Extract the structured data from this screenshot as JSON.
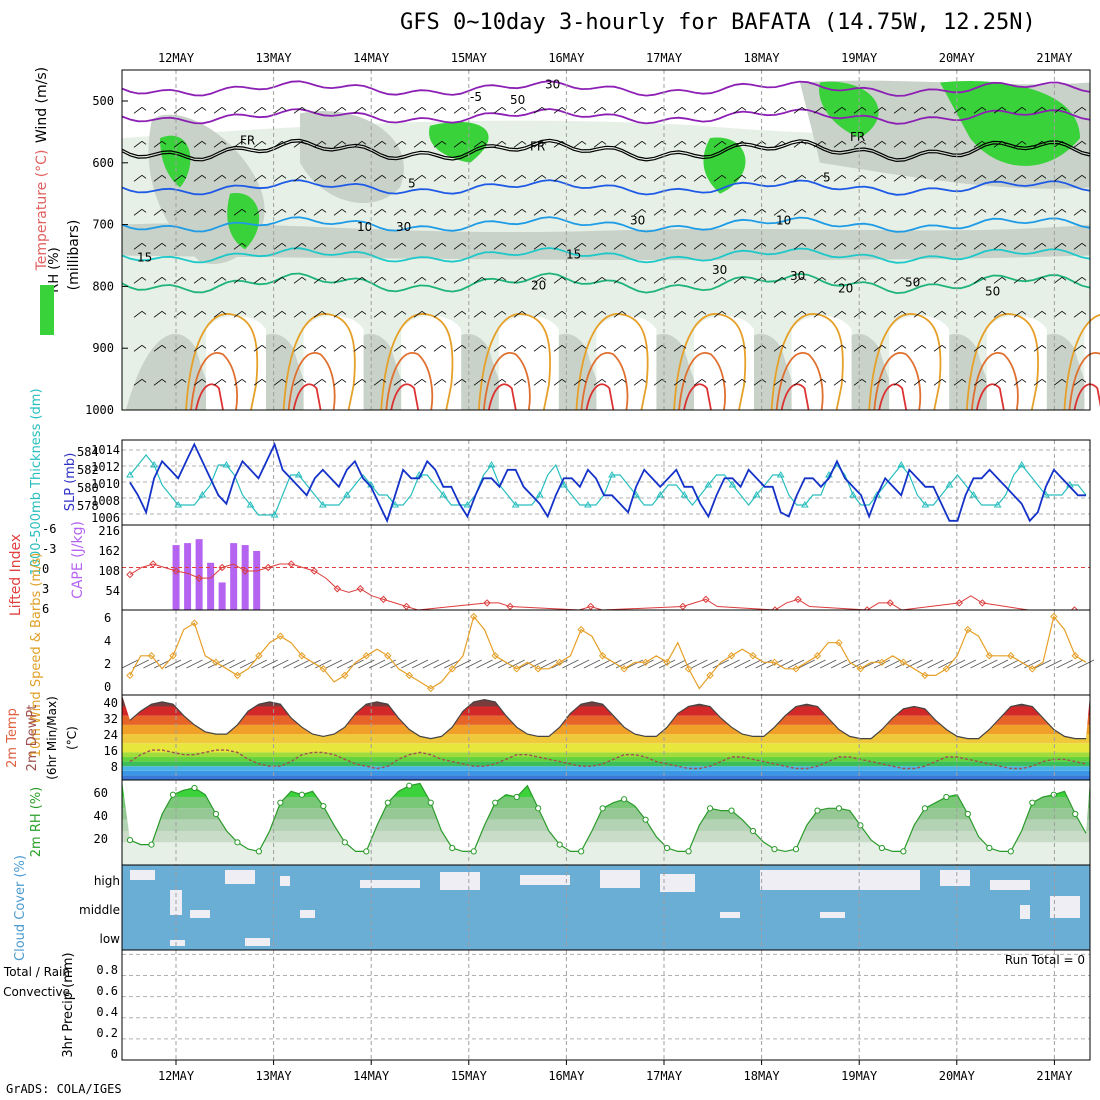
{
  "title": "GFS 0~10day 3-hourly for BAFATA (14.75W, 12.25N)",
  "credit": "GrADS: COLA/IGES",
  "colors": {
    "rh_green": "#3ad23a",
    "rh_grey": "#c8d2c8",
    "rh_light": "#e6f0e6",
    "temp_purple": "#8c1fb4",
    "temp_blue": "#1e5ae6",
    "temp_sky": "#1e9be6",
    "temp_cyan": "#1ec8c8",
    "temp_teal": "#1eb478",
    "temp_orange": "#e6a028",
    "temp_red": "#dc3232",
    "slp": "#1432c8",
    "thickness": "#28bebe",
    "cape": "#b464f0",
    "lifted": "#dc3c3c",
    "wind10": "#e6a028",
    "cloud": "#6aadd5",
    "dewpt": "#a05050"
  },
  "chart_data": {
    "x_days": [
      "12MAY",
      "13MAY",
      "14MAY",
      "15MAY",
      "16MAY",
      "17MAY",
      "18MAY",
      "19MAY",
      "20MAY",
      "21MAY"
    ],
    "panels": [
      {
        "name": "upper-air",
        "type": "heatmap",
        "ylabel_rh": "RH (%)",
        "ylabel_temp": "Temperature (°C)",
        "ylabel_wind": "Wind (m/s)",
        "ylabel_p": "(millibars)",
        "yticks": [
          "500",
          "600",
          "700",
          "800",
          "900",
          "1000"
        ],
        "contour_labels": [
          "-5",
          "FR",
          "FR",
          "FR",
          "5",
          "5",
          "10",
          "10",
          "15",
          "15",
          "20",
          "20",
          "30",
          "30",
          "30",
          "30",
          "30",
          "50",
          "50",
          "50"
        ]
      },
      {
        "name": "slp-thickness",
        "type": "line",
        "ylabel_left": "1000-500mb Thickness (dm)",
        "ylabel_right": "SLP (mb)",
        "left_ticks": [
          "584",
          "582",
          "580",
          "578"
        ],
        "right_ticks": [
          "1014",
          "1012",
          "1010",
          "1008",
          "1006"
        ],
        "slp": [
          1010.5,
          1009,
          1007,
          1011,
          1013,
          1012,
          1011,
          1013,
          1015,
          1013,
          1011,
          1009,
          1008,
          1011,
          1013,
          1012,
          1011,
          1013,
          1015,
          1012,
          1011,
          1010,
          1009,
          1011,
          1012,
          1011,
          1010,
          1012,
          1013,
          1011,
          1010,
          1008,
          1006,
          1009,
          1012,
          1011,
          1011,
          1013,
          1012,
          1010,
          1010,
          1008,
          1006.5,
          1009,
          1011,
          1011,
          1010,
          1012,
          1012,
          1010,
          1009,
          1008,
          1006.5,
          1009,
          1011,
          1011,
          1010,
          1012,
          1011,
          1009,
          1009,
          1008,
          1007,
          1010,
          1012,
          1011,
          1010,
          1011,
          1012,
          1010,
          1010,
          1008,
          1006.5,
          1009,
          1011,
          1011,
          1010,
          1012,
          1011,
          1010,
          1010,
          1007,
          1006.5,
          1009,
          1011,
          1011,
          1010,
          1011,
          1013,
          1011,
          1010,
          1009,
          1006.5,
          1009,
          1011,
          1010,
          1009,
          1012,
          1011,
          1010,
          1010,
          1008,
          1006,
          1006,
          1009,
          1011,
          1011,
          1012,
          1011,
          1010,
          1009,
          1008,
          1006,
          1007,
          1010,
          1012,
          1011,
          1010,
          1009,
          1009
        ],
        "thickness": [
          582,
          583,
          584,
          583,
          581,
          580,
          579,
          579,
          579,
          580,
          581,
          583,
          583,
          582,
          580,
          579,
          578,
          578,
          578,
          580,
          582,
          582,
          581,
          580,
          579,
          579,
          579,
          580,
          581,
          582,
          581,
          580,
          580,
          579,
          579,
          580,
          582,
          582,
          581,
          580,
          579,
          579,
          579,
          580,
          582,
          583,
          581,
          580,
          579,
          579,
          579,
          580,
          582,
          583,
          581,
          580,
          579,
          579,
          579,
          580,
          582,
          582,
          581,
          580,
          579,
          579,
          580,
          581,
          581,
          580,
          579,
          580,
          581,
          582,
          582,
          581,
          580,
          579,
          580,
          581,
          582,
          582,
          580,
          579,
          579,
          580,
          580,
          582,
          583,
          582,
          580,
          579,
          579,
          580,
          581,
          582,
          583,
          582,
          580,
          579,
          579,
          580,
          581,
          582,
          581,
          580,
          579,
          579,
          579,
          580,
          582,
          583,
          582,
          581,
          580,
          580,
          580,
          581,
          581,
          580
        ],
        "slp_range": [
          1005.5,
          1015.5
        ],
        "thickness_range": [
          577,
          585.5
        ]
      },
      {
        "name": "cape-lifted",
        "type": "bar",
        "ylabel_left": "Lifted Index",
        "ylabel_right": "CAPE (J/kg)",
        "left_ticks": [
          "-6",
          "-3",
          "0",
          "3",
          "6"
        ],
        "right_ticks": [
          "216",
          "162",
          "108",
          "54"
        ],
        "cape": [
          0,
          0,
          0,
          0,
          165,
          170,
          180,
          120,
          70,
          170,
          165,
          150,
          0,
          0,
          0,
          0,
          0,
          0,
          0,
          0,
          0,
          0,
          0,
          0,
          0,
          0,
          0,
          0,
          0,
          0,
          0,
          0,
          0,
          0,
          0,
          0,
          0,
          0,
          0,
          0,
          0,
          0,
          0,
          0,
          0,
          0,
          0,
          0,
          0,
          0,
          0,
          0,
          0,
          0,
          0,
          0,
          0,
          0,
          0,
          0,
          0,
          0,
          0,
          0,
          0,
          0,
          0,
          0,
          0,
          0,
          0,
          0,
          0,
          0,
          0,
          0,
          0,
          0,
          0,
          0,
          0,
          0,
          0,
          0
        ],
        "lifted": [
          1,
          0,
          -0.5,
          0,
          0.5,
          0.8,
          1.5,
          1.5,
          0,
          -0.5,
          0.5,
          0.5,
          0,
          -0.5,
          -0.5,
          0,
          0.5,
          1.5,
          3,
          3.5,
          3,
          4,
          4.5,
          5,
          5.5,
          6,
          7,
          8,
          8,
          7,
          6.5,
          5,
          5,
          5.5,
          7,
          8,
          8,
          7,
          6.5,
          6,
          5.5,
          6,
          7.5,
          8,
          7.5,
          7,
          6.5,
          6.5,
          5.5,
          5,
          4.5,
          5.5,
          7,
          8,
          8,
          7,
          6,
          5,
          4.5,
          5.5,
          8,
          10,
          9.5,
          8,
          6,
          5,
          5,
          6,
          7,
          7,
          7,
          6.5,
          5,
          4,
          5,
          7,
          7.5,
          7,
          6,
          6.5,
          8,
          7,
          6,
          6
        ],
        "cape_range": [
          0,
          216
        ],
        "lifted_range": [
          -6,
          6
        ]
      },
      {
        "name": "wind10m",
        "type": "line",
        "ylabel": "10m Wind Speed & Barbs (m/s)",
        "yticks": [
          "6",
          "4",
          "2",
          "0"
        ],
        "speed": [
          1.5,
          3,
          3,
          2,
          3,
          5,
          5.5,
          3,
          2.5,
          2,
          1.5,
          2,
          3,
          4,
          4.5,
          4,
          3,
          2.5,
          2,
          1,
          1.5,
          2.5,
          3,
          3.5,
          3,
          2,
          1.5,
          1,
          0.5,
          1,
          2,
          3,
          6,
          5,
          3,
          2.5,
          2,
          2.5,
          2,
          2,
          2.5,
          3,
          5,
          4.5,
          3,
          2.5,
          2,
          2.5,
          2.5,
          3,
          2.5,
          4,
          2,
          0.5,
          1.5,
          2.5,
          3,
          3.5,
          3,
          2.5,
          2.5,
          2,
          2,
          2.5,
          3,
          4,
          4,
          2.5,
          2,
          2.5,
          2.5,
          3,
          2.5,
          2,
          1.5,
          1.5,
          2,
          3,
          5,
          4.5,
          3,
          3,
          3,
          2.5,
          2,
          2.5,
          6,
          5,
          3,
          2.5
        ],
        "range": [
          0,
          6.5
        ]
      },
      {
        "name": "temp2m",
        "type": "area",
        "ylabel": "2m Temp 2m DewPt (6hr Min/Max) (°C)",
        "yticks": [
          "40",
          "32",
          "24",
          "16",
          "8"
        ],
        "temp": [
          32,
          36,
          39,
          40,
          39,
          34,
          30,
          27,
          26,
          26,
          30,
          36,
          39,
          40,
          39,
          33,
          29,
          26,
          25,
          26,
          29,
          35,
          39,
          40,
          39,
          33,
          28,
          25,
          24,
          25,
          29,
          36,
          40,
          41,
          40,
          34,
          29,
          26,
          25,
          25,
          29,
          35,
          39,
          40,
          39,
          34,
          29,
          26,
          25,
          25,
          29,
          35,
          38,
          39,
          38,
          33,
          29,
          26,
          25,
          25,
          29,
          34,
          38,
          39,
          38,
          33,
          28,
          25,
          24,
          24,
          28,
          33,
          37,
          38,
          37,
          32,
          28,
          25,
          24,
          24,
          28,
          33,
          38,
          39,
          38,
          33,
          28,
          25,
          24,
          24
        ],
        "dewpt": [
          14,
          17,
          19,
          19,
          18,
          17,
          17,
          18,
          19,
          19,
          18,
          15,
          13,
          12,
          12,
          14,
          17,
          18,
          18,
          17,
          15,
          13,
          12,
          11,
          12,
          15,
          17,
          18,
          17,
          15,
          14,
          13,
          12,
          12,
          13,
          15,
          17,
          17,
          16,
          15,
          14,
          13,
          12,
          12,
          13,
          15,
          17,
          17,
          16,
          14,
          13,
          12,
          11,
          11,
          12,
          14,
          16,
          16,
          15,
          14,
          13,
          12,
          11,
          11,
          12,
          14,
          16,
          16,
          15,
          14,
          13,
          12,
          11,
          11,
          12,
          14,
          16,
          16,
          15,
          14,
          13,
          12,
          11,
          11,
          12,
          14,
          15,
          15,
          14,
          13
        ],
        "range": [
          6,
          43
        ]
      },
      {
        "name": "rh2m",
        "type": "area",
        "ylabel": "2m RH (%)",
        "yticks": [
          "60",
          "40",
          "20"
        ],
        "rh": [
          22,
          18,
          18,
          45,
          62,
          66,
          68,
          62,
          45,
          30,
          20,
          14,
          12,
          30,
          55,
          65,
          62,
          65,
          52,
          35,
          20,
          12,
          12,
          35,
          55,
          65,
          70,
          72,
          55,
          30,
          15,
          12,
          12,
          35,
          55,
          62,
          60,
          70,
          50,
          30,
          18,
          12,
          12,
          30,
          50,
          55,
          58,
          52,
          40,
          25,
          15,
          12,
          12,
          35,
          50,
          48,
          48,
          40,
          30,
          20,
          14,
          12,
          14,
          35,
          48,
          50,
          50,
          48,
          35,
          22,
          15,
          12,
          12,
          35,
          50,
          55,
          60,
          62,
          45,
          25,
          15,
          12,
          12,
          30,
          55,
          60,
          62,
          65,
          45,
          28
        ],
        "range": [
          0,
          75
        ]
      },
      {
        "name": "cloud",
        "type": "heatmap",
        "ylabel": "Cloud Cover (%)",
        "level_labels": [
          "high",
          "middle",
          "low"
        ]
      },
      {
        "name": "precip",
        "type": "bar",
        "ylabel": "3hr Precip (mm)",
        "ylabel_legend": "Total / Rain",
        "ylabel_legend2": "Convective",
        "yticks": [
          "0.8",
          "0.6",
          "0.4",
          "0.2",
          "0"
        ],
        "run_total": "Run Total = 0",
        "values": [],
        "range": [
          0,
          1
        ]
      }
    ]
  }
}
